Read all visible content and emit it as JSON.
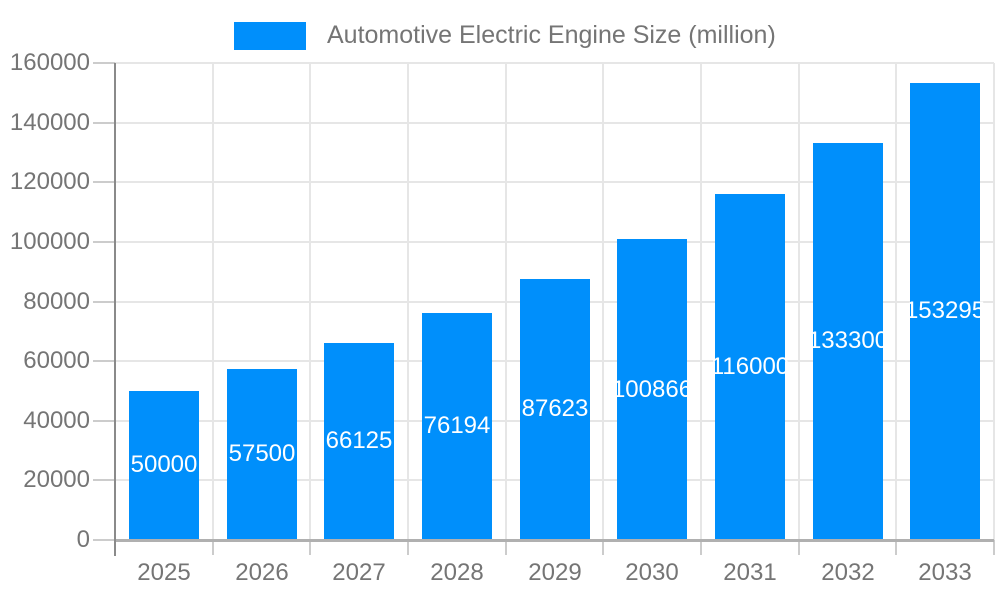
{
  "legend": {
    "label": "Automotive Electric Engine Size (million)",
    "position": "top"
  },
  "chart_data": {
    "type": "bar",
    "title": "Automotive Electric Engine Size (million)",
    "categories": [
      "2025",
      "2026",
      "2027",
      "2028",
      "2029",
      "2030",
      "2031",
      "2032",
      "2033"
    ],
    "values": [
      50000,
      57500,
      66125,
      76194,
      87623,
      100866,
      116000,
      133300,
      153295
    ],
    "bar_value_labels": [
      "50000",
      "57500",
      "66125",
      "76194",
      "87623",
      "100866",
      "116000",
      "133300",
      "153295"
    ],
    "xlabel": "",
    "ylabel": "",
    "ylim": [
      0,
      160000
    ],
    "ytick_step": 20000,
    "ytick_labels": [
      "0",
      "20000",
      "40000",
      "60000",
      "80000",
      "100000",
      "120000",
      "140000",
      "160000"
    ],
    "grid": {
      "horizontal": true,
      "vertical": true
    },
    "legend_position": "top",
    "bar_label_position": "center-inside",
    "colors": {
      "bar": "#008FFB",
      "bar_label": "#ffffff",
      "axis_label": "#757575",
      "gridline": "#e6e6e6",
      "tick": "#cccccc",
      "y_axis_line": "#8a8a8a",
      "baseline": "#b0b0b0",
      "legend_text": "#757575",
      "background": "#ffffff"
    }
  }
}
